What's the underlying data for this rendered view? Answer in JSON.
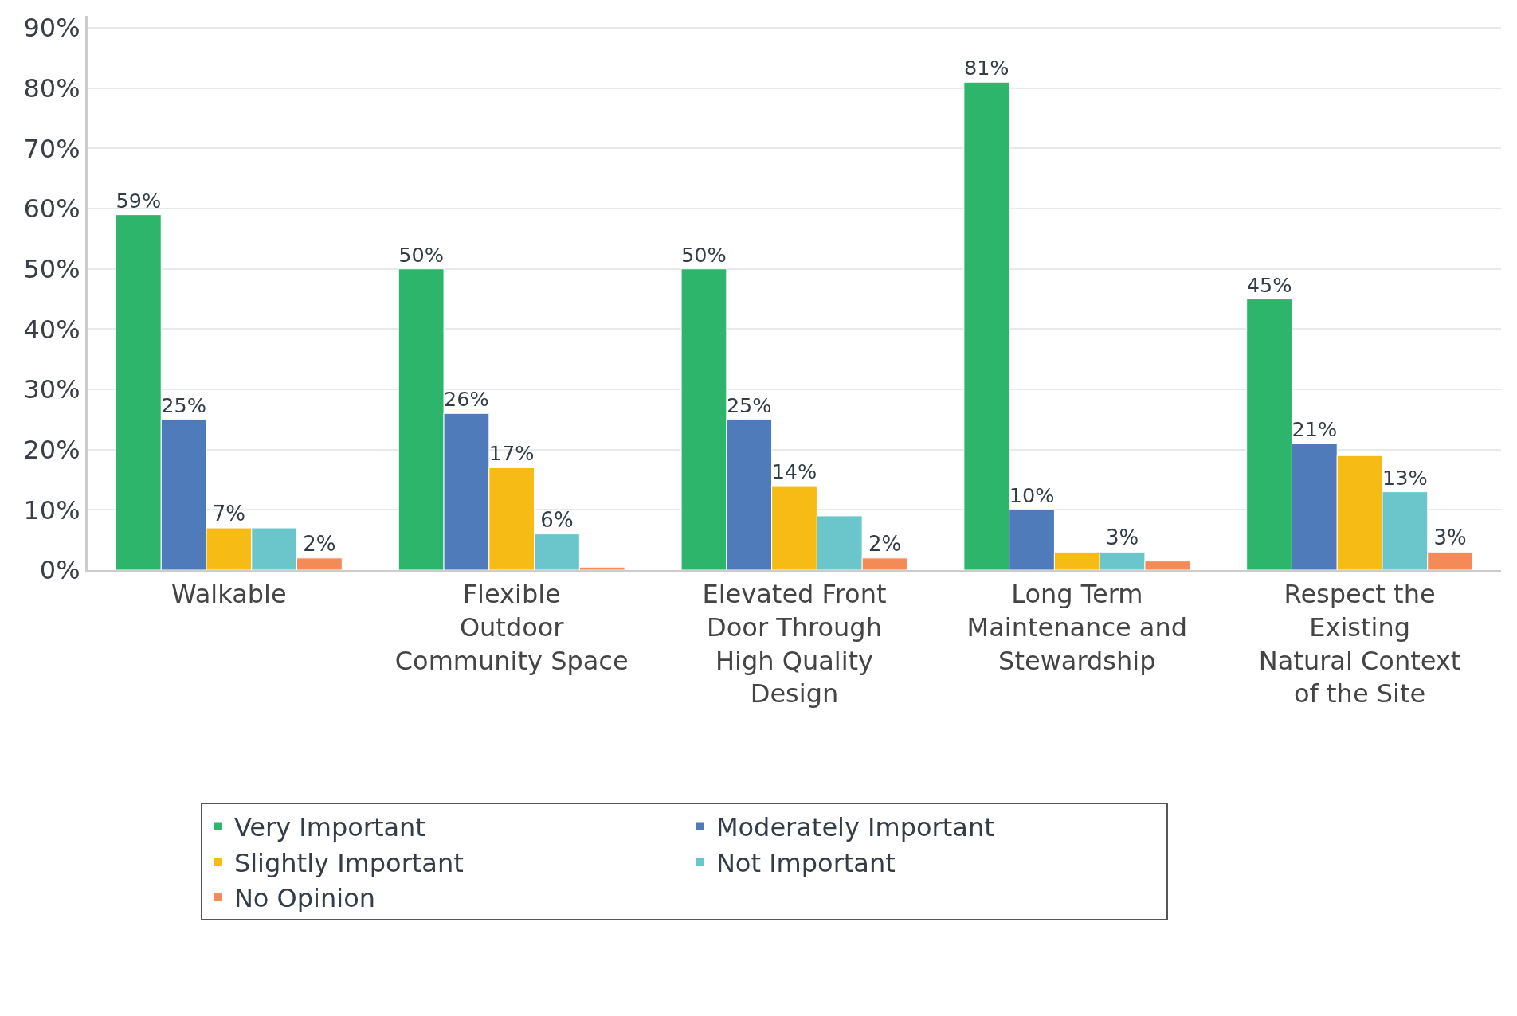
{
  "chart_data": {
    "type": "bar",
    "categories": [
      "Walkable",
      "Flexible Outdoor Community Space",
      "Elevated Front Door Through High Quality Design",
      "Long Term Maintenance and Stewardship",
      "Respect the Existing Natural Context of the Site"
    ],
    "series": [
      {
        "name": "Very Important",
        "color": "#2db56b",
        "values": [
          59,
          50,
          50,
          81,
          45
        ],
        "value_labels": [
          "59%",
          "50%",
          "50%",
          "81%",
          "45%"
        ]
      },
      {
        "name": "Moderately Important",
        "color": "#4f7bba",
        "values": [
          25,
          26,
          25,
          10,
          21
        ],
        "value_labels": [
          "25%",
          "26%",
          "25%",
          "10%",
          "21%"
        ]
      },
      {
        "name": "Slightly Important",
        "color": "#f6bc15",
        "values": [
          7,
          17,
          14,
          3,
          19
        ],
        "value_labels": [
          "7%",
          "17%",
          "14%",
          null,
          null
        ]
      },
      {
        "name": "Not Important",
        "color": "#6ac6cb",
        "values": [
          7,
          6,
          9,
          3,
          13
        ],
        "value_labels": [
          null,
          "6%",
          null,
          "3%",
          "13%"
        ]
      },
      {
        "name": "No Opinion",
        "color": "#f48a55",
        "values": [
          2,
          0.5,
          2,
          1.5,
          3
        ],
        "value_labels": [
          "2%",
          null,
          "2%",
          null,
          "3%"
        ]
      }
    ],
    "ylim": [
      0,
      92
    ],
    "yticks": [
      {
        "value": 0,
        "label": "0%"
      },
      {
        "value": 10,
        "label": "10%"
      },
      {
        "value": 20,
        "label": "20%"
      },
      {
        "value": 30,
        "label": "30%"
      },
      {
        "value": 40,
        "label": "40%"
      },
      {
        "value": 50,
        "label": "50%"
      },
      {
        "value": 60,
        "label": "60%"
      },
      {
        "value": 70,
        "label": "70%"
      },
      {
        "value": 80,
        "label": "80%"
      },
      {
        "value": 90,
        "label": "90%"
      }
    ],
    "grid": "y",
    "legend": "bottom"
  }
}
